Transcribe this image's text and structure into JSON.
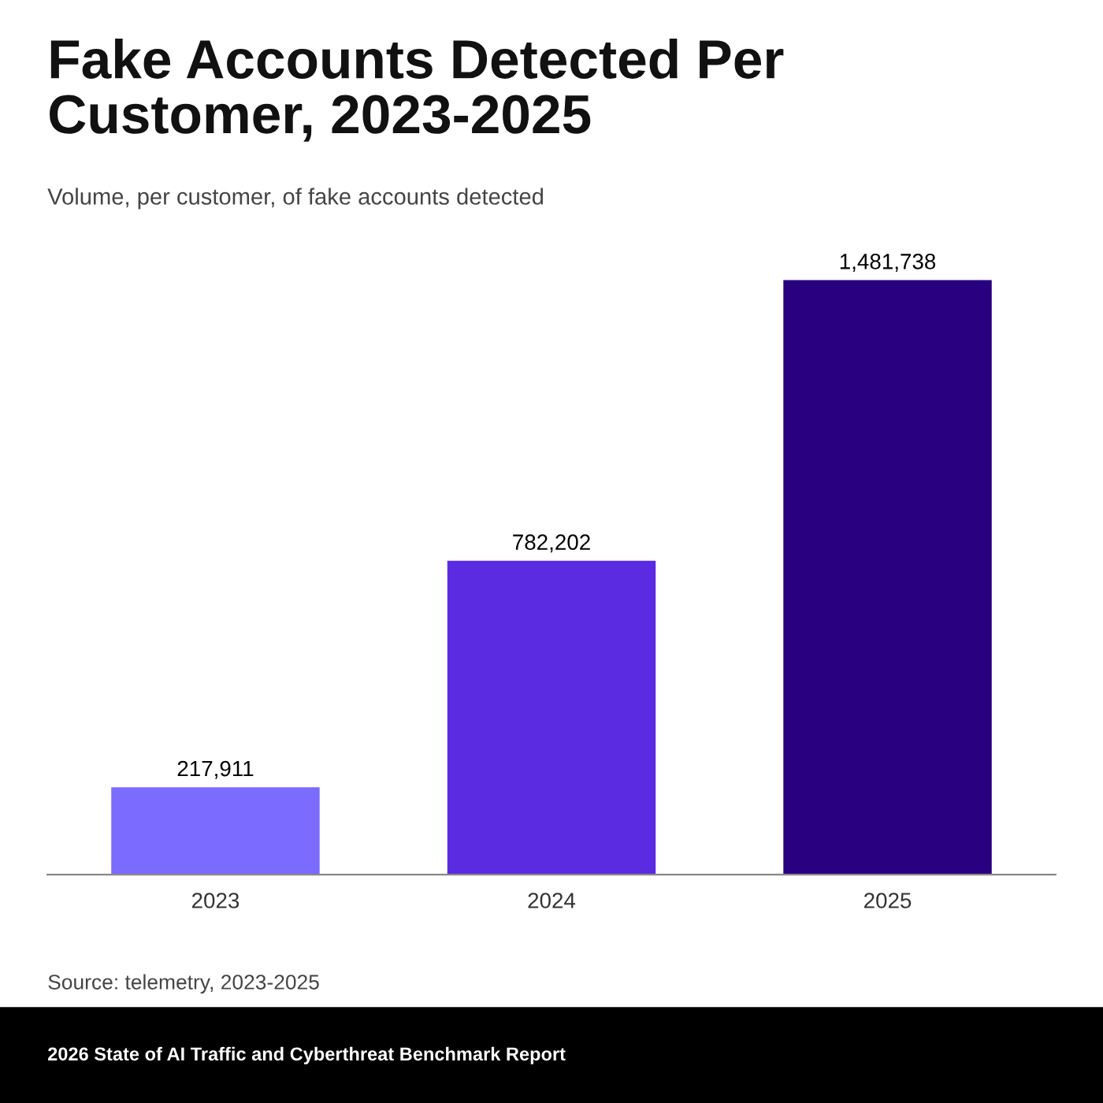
{
  "chart_data": {
    "type": "bar",
    "title": "Fake Accounts Detected Per\nCustomer, 2023-2025",
    "subtitle": "Volume, per customer, of fake accounts detected",
    "categories": [
      "2023",
      "2024",
      "2025"
    ],
    "values": [
      217911,
      782202,
      1481738
    ],
    "colors": [
      "#7b6bff",
      "#5a2be0",
      "#280080"
    ],
    "value_labels": [
      "217,911",
      "782,202",
      "1,481,738"
    ],
    "grid": false,
    "legend": false,
    "annotations": [
      "Source: telemetry, 2023-2025",
      "2026 State of AI Traffic and Cyberthreat Benchmark Report"
    ]
  }
}
